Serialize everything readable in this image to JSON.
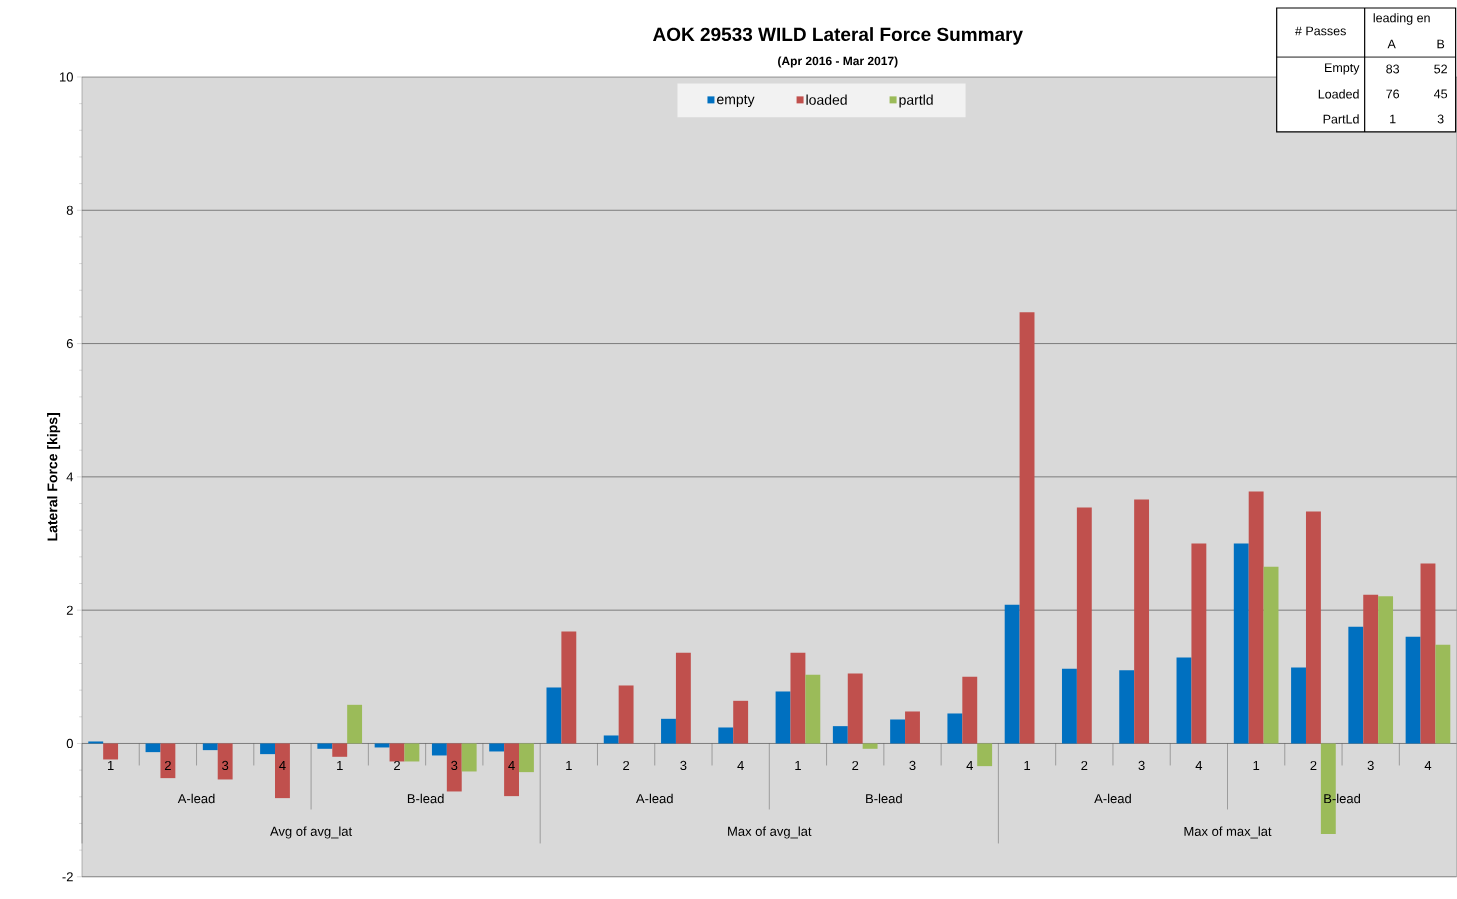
{
  "chart_data": {
    "type": "bar",
    "title": "AOK 29533 WILD Lateral Force Summary",
    "subtitle": "(Apr 2016 - Mar 2017)",
    "ylabel": "Lateral Force [kips]",
    "categories": [
      "1",
      "2",
      "3",
      "4",
      "1",
      "2",
      "3",
      "4",
      "1",
      "2",
      "3",
      "4",
      "1",
      "2",
      "3",
      "4",
      "1",
      "2",
      "3",
      "4",
      "1",
      "2",
      "3",
      "4"
    ],
    "series": [
      {
        "name": "empty",
        "color": "#0070c0",
        "values": [
          0.03,
          -0.13,
          -0.1,
          -0.16,
          -0.08,
          -0.06,
          -0.18,
          -0.12,
          0.84,
          0.12,
          0.37,
          0.24,
          0.78,
          0.26,
          0.36,
          0.45,
          2.08,
          1.12,
          1.1,
          1.29,
          3.0,
          1.14,
          1.75,
          1.6
        ]
      },
      {
        "name": "loaded",
        "color": "#c0504d",
        "values": [
          -0.24,
          -0.52,
          -0.54,
          -0.82,
          -0.2,
          -0.27,
          -0.72,
          -0.79,
          1.68,
          0.87,
          1.36,
          0.64,
          1.36,
          1.05,
          0.48,
          1.0,
          6.47,
          3.54,
          3.66,
          3.0,
          3.78,
          3.48,
          2.23,
          2.7
        ]
      },
      {
        "name": "partld",
        "color": "#9bbb59",
        "values": [
          null,
          null,
          null,
          null,
          0.58,
          -0.27,
          -0.42,
          -0.43,
          null,
          null,
          null,
          null,
          1.03,
          -0.08,
          null,
          -0.34,
          null,
          null,
          null,
          null,
          2.65,
          -1.36,
          2.21,
          1.48
        ]
      }
    ],
    "ylim": [
      -2,
      10
    ],
    "yticks": [
      -2,
      0,
      2,
      4,
      6,
      8,
      10
    ],
    "grid": "y",
    "legend": "top",
    "annotations": [
      "A-lead",
      "B-lead",
      "A-lead",
      "B-lead",
      "A-lead",
      "B-lead",
      "Avg of avg_lat",
      "Max of avg_lat",
      "Max of max_lat",
      "# Passes",
      "leading en",
      "A",
      "B",
      "Empty",
      "83",
      "52",
      "Loaded",
      "76",
      "45",
      "PartLd",
      "1",
      "3"
    ]
  }
}
